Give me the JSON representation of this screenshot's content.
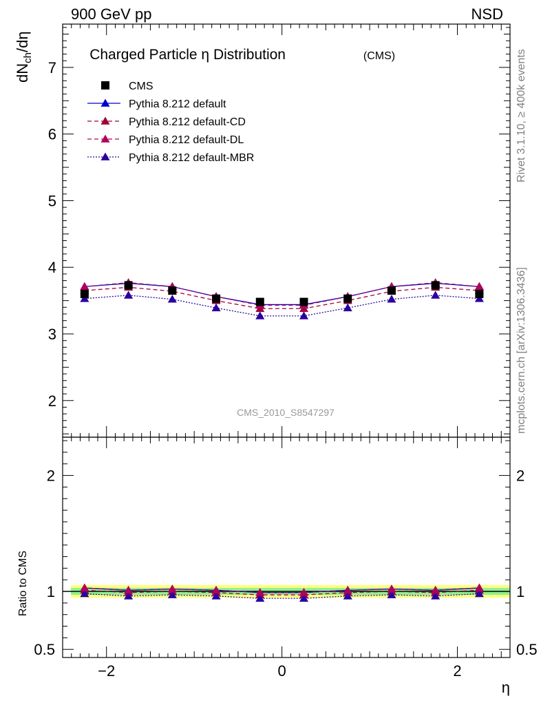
{
  "header": {
    "left": "900 GeV pp",
    "right": "NSD",
    "side_rivet": "Rivet 3.1.10, ≥ 400k events",
    "side_mcplots": "mcplots.cern.ch [arXiv:1306.3436]"
  },
  "colors": {
    "cms": "#000000",
    "default": "#0000cc",
    "cd": "#a0003a",
    "dl": "#b0005a",
    "mbr": "#2a00a0",
    "band_inner": "#90f090",
    "band_outer": "#ffff80",
    "watermark": "#999999",
    "side_text": "#808080"
  },
  "chart_data": [
    {
      "type": "scatter",
      "title": "Charged Particle η Distribution",
      "title_suffix": "(CMS)",
      "ylabel": "dN_ch/dη",
      "ylim": [
        1.45,
        7.65
      ],
      "xlim": [
        -2.5,
        2.6
      ],
      "yticks": [
        2,
        3,
        4,
        5,
        6,
        7
      ],
      "ytick_labels": [
        "2",
        "3",
        "4",
        "5",
        "6",
        "7"
      ],
      "watermark": "CMS_2010_S8547297",
      "x": [
        -2.25,
        -1.75,
        -1.25,
        -0.75,
        -0.25,
        0.25,
        0.75,
        1.25,
        1.75,
        2.25
      ],
      "series": [
        {
          "key": "cms",
          "name": "CMS",
          "marker": "square",
          "line": "none",
          "values": [
            3.6,
            3.73,
            3.65,
            3.53,
            3.48,
            3.48,
            3.53,
            3.65,
            3.73,
            3.6
          ]
        },
        {
          "key": "default",
          "name": "Pythia 8.212 default",
          "marker": "triangle",
          "line": "solid",
          "values": [
            3.71,
            3.76,
            3.71,
            3.56,
            3.44,
            3.44,
            3.56,
            3.71,
            3.76,
            3.71
          ]
        },
        {
          "key": "cd",
          "name": "Pythia 8.212 default-CD",
          "marker": "triangle",
          "line": "dashed",
          "values": [
            3.65,
            3.7,
            3.64,
            3.5,
            3.38,
            3.38,
            3.5,
            3.64,
            3.7,
            3.65
          ]
        },
        {
          "key": "dl",
          "name": "Pythia 8.212 default-DL",
          "marker": "triangle",
          "line": "dashed",
          "values": [
            3.71,
            3.77,
            3.71,
            3.56,
            3.43,
            3.43,
            3.56,
            3.71,
            3.77,
            3.71
          ]
        },
        {
          "key": "mbr",
          "name": "Pythia 8.212 default-MBR",
          "marker": "triangle",
          "line": "dotted",
          "values": [
            3.53,
            3.58,
            3.52,
            3.39,
            3.27,
            3.27,
            3.39,
            3.52,
            3.58,
            3.53
          ]
        }
      ]
    },
    {
      "type": "scatter",
      "title": "Ratio to CMS",
      "ylabel": "Ratio to CMS",
      "xlabel": "η",
      "ylim": [
        0.43,
        2.33
      ],
      "xlim": [
        -2.5,
        2.6
      ],
      "yticks": [
        0.5,
        1,
        2
      ],
      "ytick_labels": [
        "0.5",
        "1",
        "2"
      ],
      "xticks": [
        -2,
        0,
        2
      ],
      "xtick_labels": [
        "−2",
        "0",
        "2"
      ],
      "band": {
        "inner": 0.03,
        "outer": 0.055
      },
      "x": [
        -2.25,
        -1.75,
        -1.25,
        -0.75,
        -0.25,
        0.25,
        0.75,
        1.25,
        1.75,
        2.25
      ],
      "series": [
        {
          "key": "default",
          "name": "Pythia 8.212 default",
          "line": "solid",
          "values": [
            1.03,
            1.01,
            1.02,
            1.01,
            0.99,
            0.99,
            1.01,
            1.02,
            1.01,
            1.03
          ]
        },
        {
          "key": "cd",
          "name": "Pythia 8.212 default-CD",
          "line": "dashed",
          "values": [
            1.01,
            0.99,
            1.0,
            0.99,
            0.97,
            0.97,
            0.99,
            1.0,
            0.99,
            1.01
          ]
        },
        {
          "key": "dl",
          "name": "Pythia 8.212 default-DL",
          "line": "dashed",
          "values": [
            1.03,
            1.01,
            1.02,
            1.01,
            0.99,
            0.99,
            1.01,
            1.02,
            1.01,
            1.03
          ]
        },
        {
          "key": "mbr",
          "name": "Pythia 8.212 default-MBR",
          "line": "dotted",
          "values": [
            0.98,
            0.96,
            0.97,
            0.96,
            0.94,
            0.94,
            0.96,
            0.97,
            0.96,
            0.98
          ]
        }
      ]
    }
  ]
}
